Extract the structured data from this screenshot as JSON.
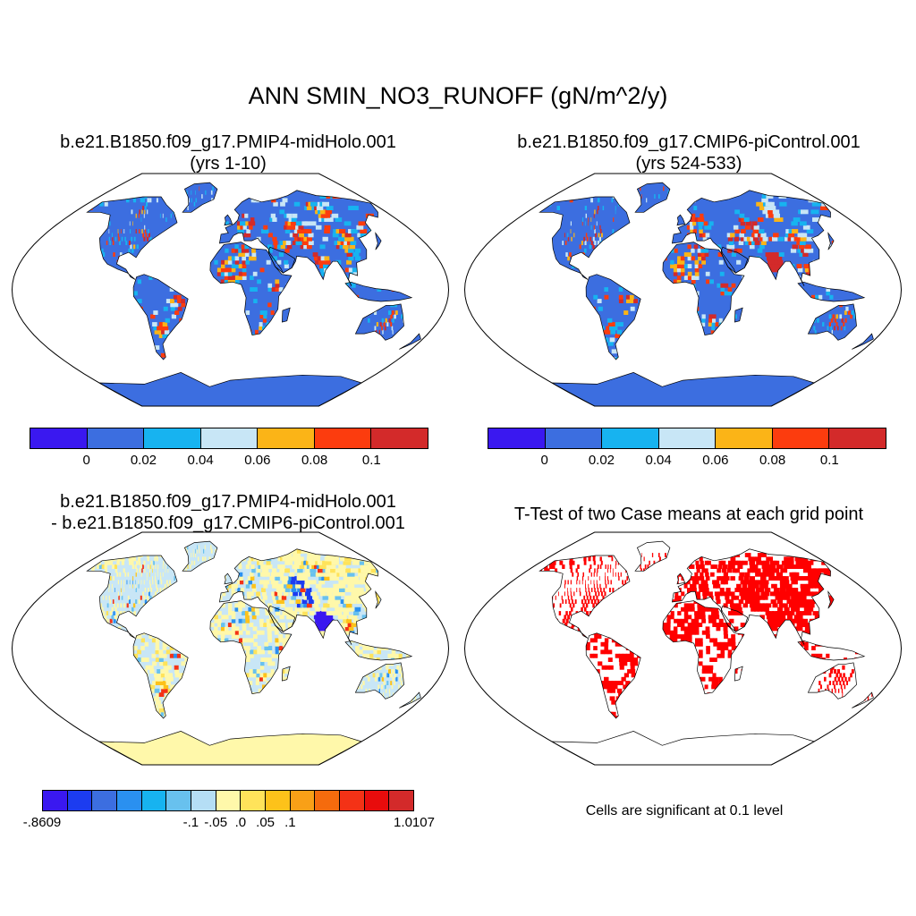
{
  "title": "ANN SMIN_NO3_RUNOFF (gN/m^2/y)",
  "panels": {
    "p1": {
      "title": "b.e21.B1850.f09_g17.PMIP4-midHolo.001",
      "subtitle": "(yrs 1-10)"
    },
    "p2": {
      "title": "b.e21.B1850.f09_g17.CMIP6-piControl.001",
      "subtitle": "(yrs 524-533)"
    },
    "p3": {
      "title": "b.e21.B1850.f09_g17.PMIP4-midHolo.001",
      "subtitle": "- b.e21.B1850.f09_g17.CMIP6-piControl.001"
    },
    "p4": {
      "title": "T-Test of two Case means at each grid point",
      "note": "Cells are significant at 0.1 level"
    }
  },
  "colorbar_top": {
    "colors": [
      "#3a18f0",
      "#3c6ee0",
      "#17b3f0",
      "#c8e6f6",
      "#fbb417",
      "#fc3c0e",
      "#d32a2a"
    ],
    "labels": [
      "0",
      "0.02",
      "0.04",
      "0.06",
      "0.08",
      "0.1"
    ]
  },
  "colorbar_diff": {
    "colors": [
      "#3a18f0",
      "#1c3cf0",
      "#3c6ee0",
      "#2a90f0",
      "#17b3f0",
      "#68c1ee",
      "#b5def5",
      "#fff8aa",
      "#ffe35a",
      "#fdc21a",
      "#f9a017",
      "#f56b0d",
      "#f43216",
      "#e80c0c",
      "#d32a2a"
    ],
    "labels": [
      "-.8609",
      "-.1",
      "-.05",
      ".0",
      ".05",
      ".1",
      "1.0107"
    ],
    "label_positions": [
      0,
      6,
      7,
      8,
      9,
      10,
      15
    ]
  },
  "map_colors": {
    "ocean": "#ffffff",
    "p1_base": "#3c6ee0",
    "p2_base": "#3c6ee0",
    "p3_base": "#c8e6f6",
    "p3_antarctica": "#fff8aa",
    "p4_sig": "#ff0000"
  }
}
